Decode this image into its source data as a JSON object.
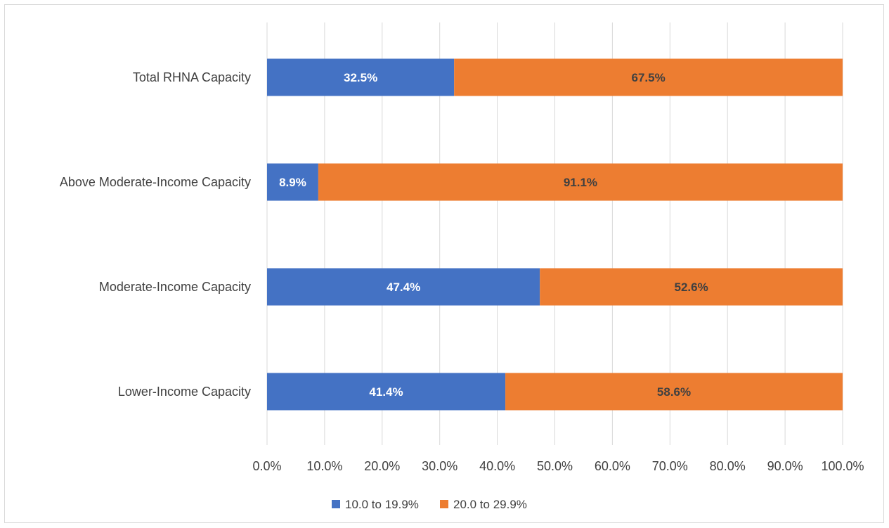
{
  "chart_data": {
    "type": "bar",
    "orientation": "horizontal",
    "stacked": true,
    "categories": [
      "Total RHNA Capacity",
      "Above Moderate-Income Capacity",
      "Moderate-Income Capacity",
      "Lower-Income Capacity"
    ],
    "series": [
      {
        "name": "10.0 to 19.9%",
        "color": "#4472c4",
        "label_color": "#ffffff",
        "values": [
          32.5,
          8.9,
          47.4,
          41.4
        ]
      },
      {
        "name": "20.0 to 29.9%",
        "color": "#ed7d31",
        "label_color": "#404040",
        "values": [
          67.5,
          91.1,
          52.6,
          58.6
        ]
      }
    ],
    "data_labels": [
      [
        "32.5%",
        "8.9%",
        "47.4%",
        "41.4%"
      ],
      [
        "67.5%",
        "91.1%",
        "52.6%",
        "58.6%"
      ]
    ],
    "x_ticks": [
      "0.0%",
      "10.0%",
      "20.0%",
      "30.0%",
      "40.0%",
      "50.0%",
      "60.0%",
      "70.0%",
      "80.0%",
      "90.0%",
      "100.0%"
    ],
    "xlim": [
      0,
      100
    ],
    "grid": true,
    "legend_position": "bottom",
    "title": "",
    "xlabel": "",
    "ylabel": ""
  }
}
